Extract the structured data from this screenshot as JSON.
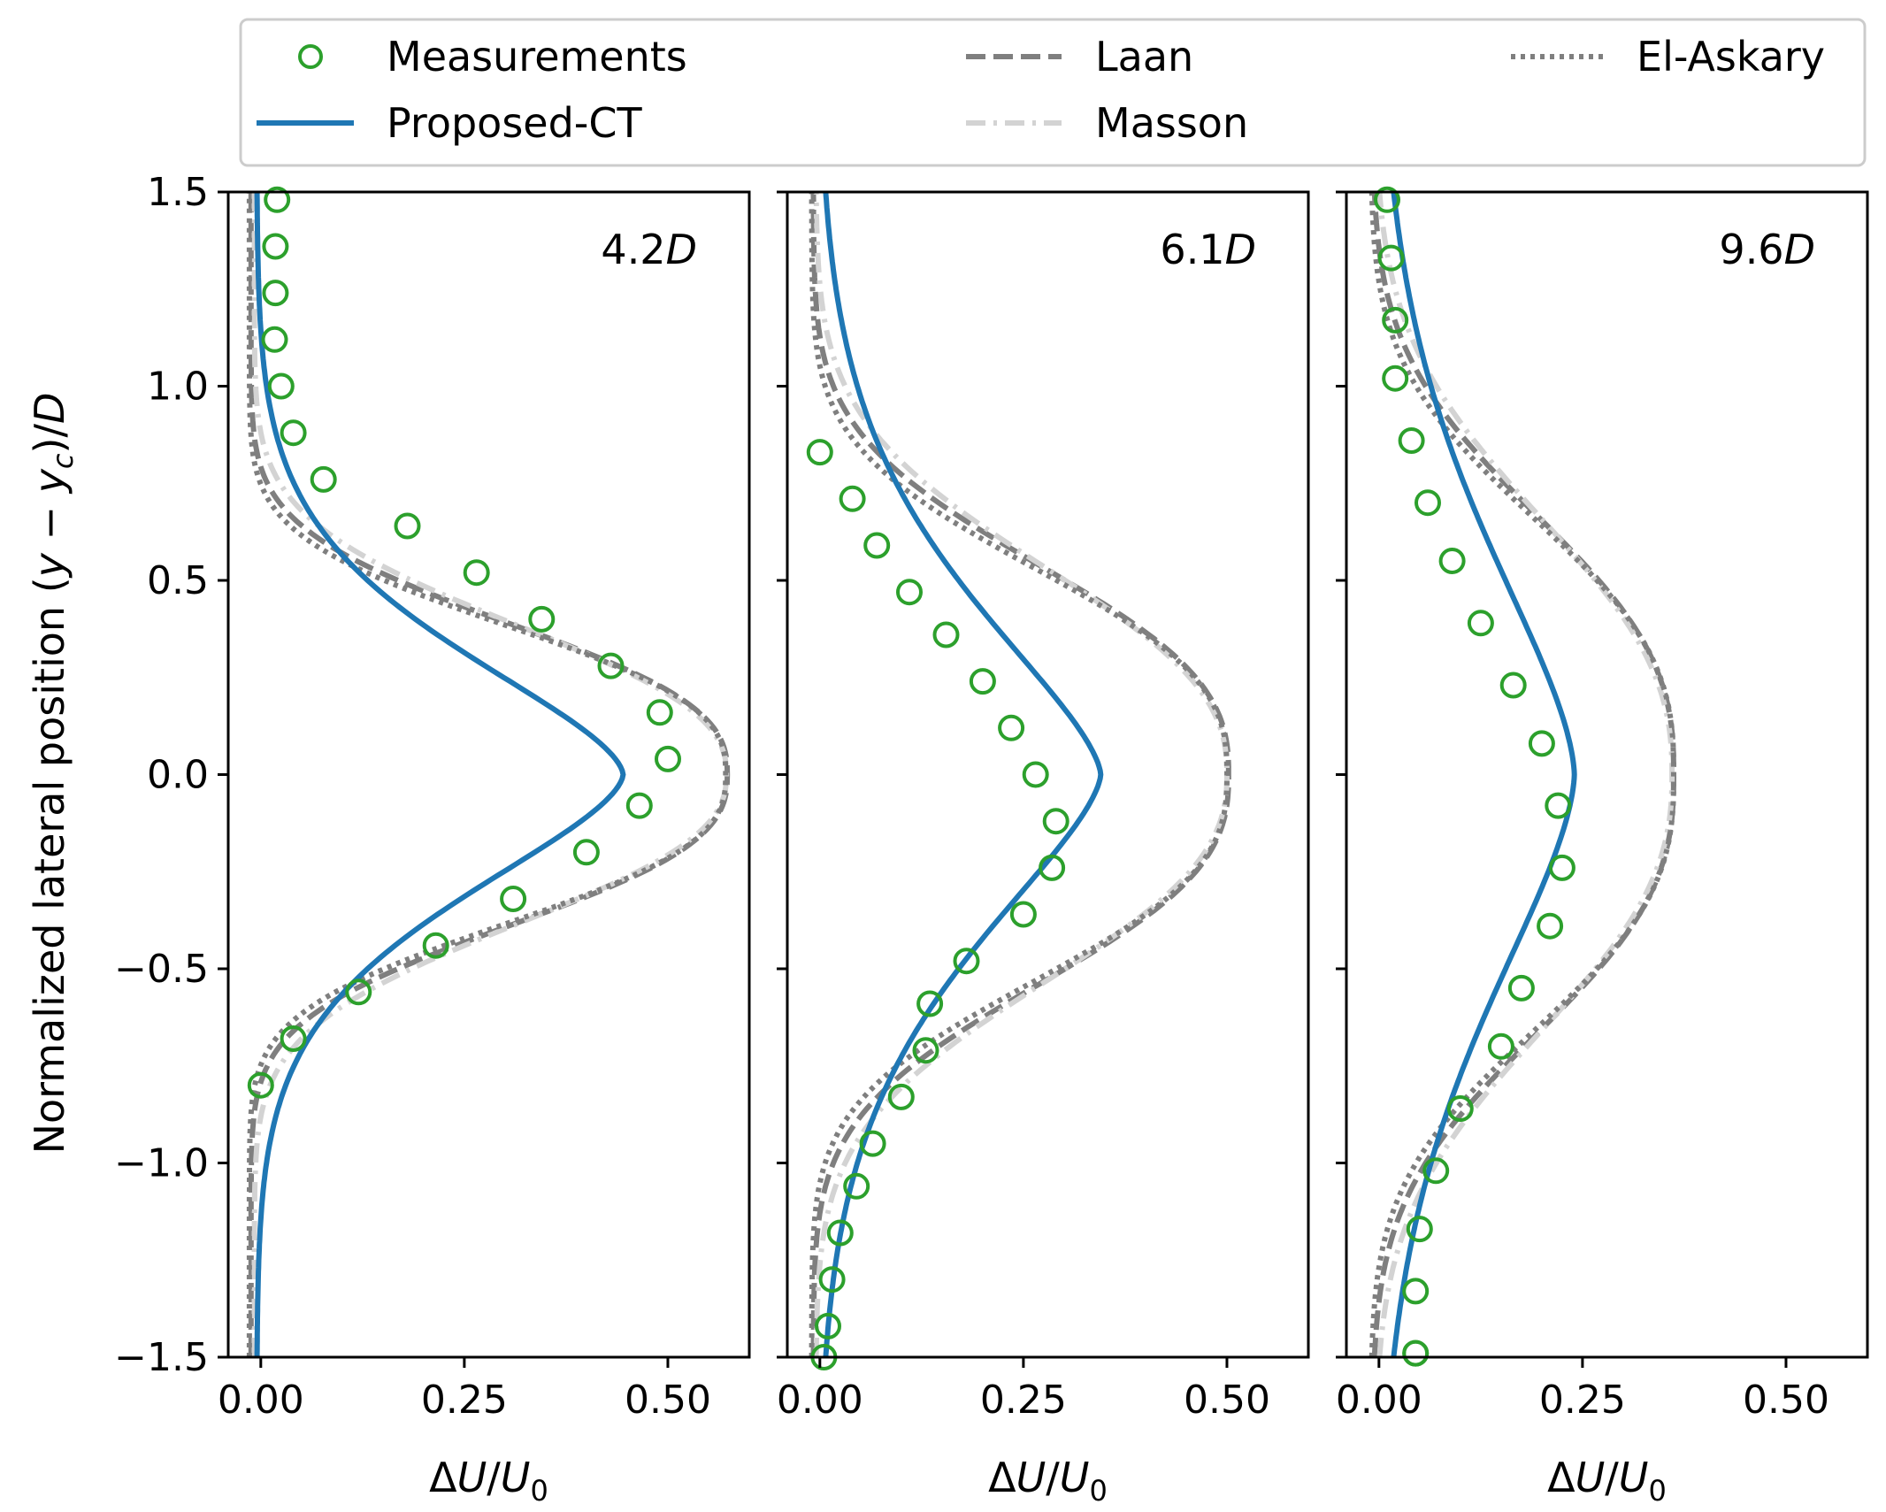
{
  "chart_data": {
    "type": "line",
    "ylabel_parts": [
      "Normalized lateral position (",
      "y",
      " − ",
      "y",
      "c",
      ")/",
      "D"
    ],
    "xlabel_parts": [
      "Δ",
      "U",
      "/",
      "U",
      "0"
    ],
    "xlim": [
      -0.04,
      0.6
    ],
    "ylim": [
      -1.5,
      1.5
    ],
    "x_ticks": [
      0.0,
      0.25,
      0.5
    ],
    "x_tick_labels": [
      "0.00",
      "0.25",
      "0.50"
    ],
    "y_ticks": [
      1.5,
      1.0,
      0.5,
      0.0,
      -0.5,
      -1.0,
      -1.5
    ],
    "y_tick_labels": [
      "1.5",
      "1.0",
      "0.5",
      "0.0",
      "−0.5",
      "−1.0",
      "−1.5"
    ],
    "legend": {
      "placement": "top",
      "entries": [
        {
          "label": "Measurements",
          "style": "circle",
          "color": "#2ca02c"
        },
        {
          "label": "Proposed-CT",
          "style": "solid",
          "color": "#1f77b4"
        },
        {
          "label": "Laan",
          "style": "dashed",
          "color": "#7f7f7f"
        },
        {
          "label": "Masson",
          "style": "dashdot",
          "color": "#d3d3d3"
        },
        {
          "label": "El-Askary",
          "style": "dotted",
          "color": "#7f7f7f"
        }
      ]
    },
    "colors": {
      "measurements": "#2ca02c",
      "proposed": "#1f77b4",
      "laan": "#7f7f7f",
      "masson": "#d3d3d3",
      "elaskary": "#7f7f7f"
    },
    "panels": [
      {
        "label_num": "4.2",
        "label_unit": "D",
        "measurements": {
          "x": [
            0.02,
            0.018,
            0.018,
            0.017,
            0.025,
            0.04,
            0.077,
            0.18,
            0.265,
            0.345,
            0.43,
            0.49,
            0.5,
            0.465,
            0.4,
            0.31,
            0.215,
            0.12,
            0.04,
            0.0
          ],
          "y": [
            1.48,
            1.36,
            1.24,
            1.12,
            1.0,
            0.88,
            0.76,
            0.64,
            0.52,
            0.4,
            0.28,
            0.16,
            0.04,
            -0.08,
            -0.2,
            -0.32,
            -0.44,
            -0.56,
            -0.68,
            -0.8
          ]
        },
        "proposed": {
          "base": -0.005,
          "amp": 0.45,
          "center": 0.0,
          "sigma": 0.29,
          "shape": 1.6
        },
        "laan": {
          "base": -0.012,
          "amp": 0.585,
          "center": 0.0,
          "sigma": 0.36,
          "shape": 2.6
        },
        "masson": {
          "base": -0.008,
          "amp": 0.58,
          "center": 0.0,
          "sigma": 0.36,
          "shape": 2.4
        },
        "elaskary": {
          "base": -0.014,
          "amp": 0.585,
          "center": 0.0,
          "sigma": 0.355,
          "shape": 2.7
        }
      },
      {
        "label_num": "6.1",
        "label_unit": "D",
        "measurements": {
          "x": [
            0.0,
            0.04,
            0.07,
            0.11,
            0.155,
            0.2,
            0.235,
            0.265,
            0.29,
            0.285,
            0.25,
            0.18,
            0.135,
            0.13,
            0.1,
            0.065,
            0.045,
            0.025,
            0.015,
            0.01,
            0.005
          ],
          "y": [
            0.83,
            0.71,
            0.59,
            0.47,
            0.36,
            0.24,
            0.12,
            0.0,
            -0.12,
            -0.24,
            -0.36,
            -0.48,
            -0.59,
            -0.71,
            -0.83,
            -0.95,
            -1.06,
            -1.18,
            -1.3,
            -1.42,
            -1.5
          ]
        },
        "proposed": {
          "base": -0.002,
          "amp": 0.347,
          "center": 0.0,
          "sigma": 0.4,
          "shape": 1.5
        },
        "laan": {
          "base": -0.008,
          "amp": 0.51,
          "center": 0.0,
          "sigma": 0.5,
          "shape": 2.6
        },
        "masson": {
          "base": -0.005,
          "amp": 0.505,
          "center": 0.0,
          "sigma": 0.5,
          "shape": 2.4
        },
        "elaskary": {
          "base": -0.01,
          "amp": 0.51,
          "center": 0.0,
          "sigma": 0.49,
          "shape": 2.7
        }
      },
      {
        "label_num": "9.6",
        "label_unit": "D",
        "measurements": {
          "x": [
            0.01,
            0.015,
            0.02,
            0.02,
            0.04,
            0.06,
            0.09,
            0.125,
            0.165,
            0.2,
            0.22,
            0.225,
            0.21,
            0.175,
            0.15,
            0.1,
            0.07,
            0.05,
            0.045,
            0.045,
            0.045
          ],
          "y": [
            1.48,
            1.33,
            1.17,
            1.02,
            0.86,
            0.7,
            0.55,
            0.39,
            0.23,
            0.08,
            -0.08,
            -0.24,
            -0.39,
            -0.55,
            -0.7,
            -0.86,
            -1.02,
            -1.17,
            -1.33,
            -1.49,
            -1.49
          ]
        },
        "proposed": {
          "base": -0.002,
          "amp": 0.242,
          "center": 0.0,
          "sigma": 0.55,
          "shape": 1.6
        },
        "laan": {
          "base": -0.008,
          "amp": 0.37,
          "center": 0.0,
          "sigma": 0.62,
          "shape": 2.6
        },
        "masson": {
          "base": -0.005,
          "amp": 0.365,
          "center": 0.0,
          "sigma": 0.62,
          "shape": 2.4
        },
        "elaskary": {
          "base": -0.01,
          "amp": 0.372,
          "center": 0.0,
          "sigma": 0.61,
          "shape": 2.7
        }
      }
    ]
  }
}
